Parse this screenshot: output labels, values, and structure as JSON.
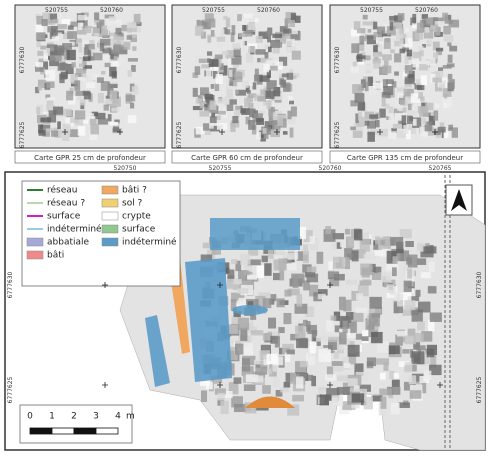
{
  "panels": [
    {
      "x_labels": [
        "520755",
        "520760"
      ],
      "y_labels": [
        "6777630",
        "6777625"
      ],
      "caption": "Carte GPR 25 cm de profondeur"
    },
    {
      "x_labels": [
        "520755",
        "520760"
      ],
      "y_labels": [
        "6777630",
        "6777625"
      ],
      "caption": "Carte GPR 60 cm de profondeur"
    },
    {
      "x_labels": [
        "520755",
        "520760"
      ],
      "y_labels": [
        "6777630",
        "6777625"
      ],
      "caption": "Carte GPR 135 cm de profondeur"
    }
  ],
  "main_map": {
    "x_labels": [
      "520750",
      "520755",
      "520760",
      "520765"
    ],
    "y_labels": [
      "6777630",
      "6777625"
    ],
    "legend": {
      "lines": [
        {
          "label": "réseau",
          "color": "#2e7d32"
        },
        {
          "label": "réseau ?",
          "color": "#b8d8b0"
        },
        {
          "label": "surface",
          "color": "#d020c0"
        },
        {
          "label": "indéterminé",
          "color": "#9ec8e8"
        }
      ],
      "areas": [
        {
          "label": "abbatiale",
          "color": "#a8a8d8"
        },
        {
          "label": "bâti",
          "color": "#f08a8a"
        },
        {
          "label": "bâti ?",
          "color": "#f0a860"
        },
        {
          "label": "sol ?",
          "color": "#f0d070"
        },
        {
          "label": "crypte",
          "color": "#ffffff"
        },
        {
          "label": "surface",
          "color": "#90c890"
        },
        {
          "label": "indéterminé",
          "color": "#5b9bc8"
        }
      ]
    },
    "scale": {
      "labels": [
        "0",
        "1",
        "2",
        "3",
        "4"
      ],
      "unit": "m"
    }
  }
}
